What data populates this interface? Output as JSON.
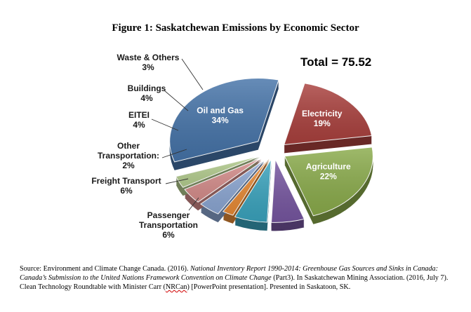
{
  "chart_data": {
    "type": "pie",
    "title": "Figure 1: Saskatchewan Emissions by Economic Sector",
    "annotation": "Total = 75.52",
    "slices": [
      {
        "name": "Oil and Gas",
        "value": 34,
        "pct_label": "34%",
        "color": "#4573a8",
        "label_lines": [
          "Oil and Gas"
        ]
      },
      {
        "name": "Electricity",
        "value": 19,
        "pct_label": "19%",
        "color": "#a9403d",
        "label_lines": [
          "Electricity"
        ]
      },
      {
        "name": "Agriculture",
        "value": 22,
        "pct_label": "22%",
        "color": "#8aab4b",
        "label_lines": [
          "Agriculture"
        ]
      },
      {
        "name": "Passenger Transportation",
        "value": 6,
        "pct_label": "6%",
        "color": "#7656a0",
        "label_lines": [
          "Passenger",
          "Transportation"
        ]
      },
      {
        "name": "Freight Transport",
        "value": 6,
        "pct_label": "6%",
        "color": "#3aa3bd",
        "label_lines": [
          "Freight Transport"
        ]
      },
      {
        "name": "Other Transportation:",
        "value": 2,
        "pct_label": "2%",
        "color": "#e88a35",
        "label_lines": [
          "Other",
          "Transportation:"
        ]
      },
      {
        "name": "EITEI",
        "value": 4,
        "pct_label": "4%",
        "color": "#8ba6d2",
        "label_lines": [
          "EITEI"
        ]
      },
      {
        "name": "Buildings",
        "value": 4,
        "pct_label": "4%",
        "color": "#d58d8b",
        "label_lines": [
          "Buildings"
        ]
      },
      {
        "name": "Waste & Others",
        "value": 3,
        "pct_label": "3%",
        "color": "#b4cd8f",
        "label_lines": [
          "Waste & Others"
        ]
      }
    ]
  },
  "source": {
    "prefix": "Source: Environment and Climate Change Canada. (2016). ",
    "italic1": "National Inventory Report 1990-2014: Greenhouse Gas Sources and Sinks in Canada: Canada’s Submission to the United Nations Framework Convention on Climate Change",
    "mid": " (Part3). In Saskatchewan Mining Association. (2016, July 7). Clean Technology Roundtable with Minister Carr (",
    "squiggle": "NRCan",
    "suffix": ") [PowerPoint presentation]. Presented in Saskatoon, SK."
  }
}
